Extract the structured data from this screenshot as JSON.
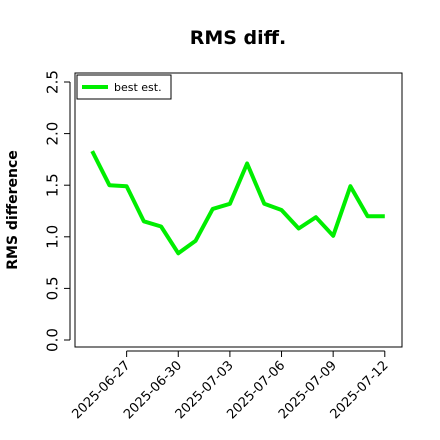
{
  "chart_data": {
    "type": "line",
    "title": "RMS diff.",
    "xlabel": "",
    "ylabel": "RMS difference",
    "ylim": [
      0.0,
      2.5
    ],
    "yticks": [
      0.0,
      0.5,
      1.0,
      1.5,
      2.0,
      2.5
    ],
    "ytick_labels": [
      "0.0",
      "0.5",
      "1.0",
      "1.5",
      "2.0",
      "2.5"
    ],
    "xlim": [
      "2025-06-24",
      "2025-07-13"
    ],
    "xtick_labels": [
      "2025-06-27",
      "2025-06-30",
      "2025-07-03",
      "2025-07-06",
      "2025-07-09",
      "2025-07-12"
    ],
    "grid": false,
    "legend_position": "top-left",
    "x": [
      "2025-06-25",
      "2025-06-26",
      "2025-06-27",
      "2025-06-28",
      "2025-06-29",
      "2025-06-30",
      "2025-07-01",
      "2025-07-02",
      "2025-07-03",
      "2025-07-04",
      "2025-07-05",
      "2025-07-06",
      "2025-07-07",
      "2025-07-08",
      "2025-07-09",
      "2025-07-10",
      "2025-07-11",
      "2025-07-12"
    ],
    "series": [
      {
        "name": "best est.",
        "color": "#00ee00",
        "values": [
          1.83,
          1.5,
          1.49,
          1.15,
          1.1,
          0.84,
          0.96,
          1.27,
          1.32,
          1.71,
          1.32,
          1.26,
          1.08,
          1.19,
          1.01,
          1.49,
          1.2,
          1.2
        ]
      }
    ]
  }
}
